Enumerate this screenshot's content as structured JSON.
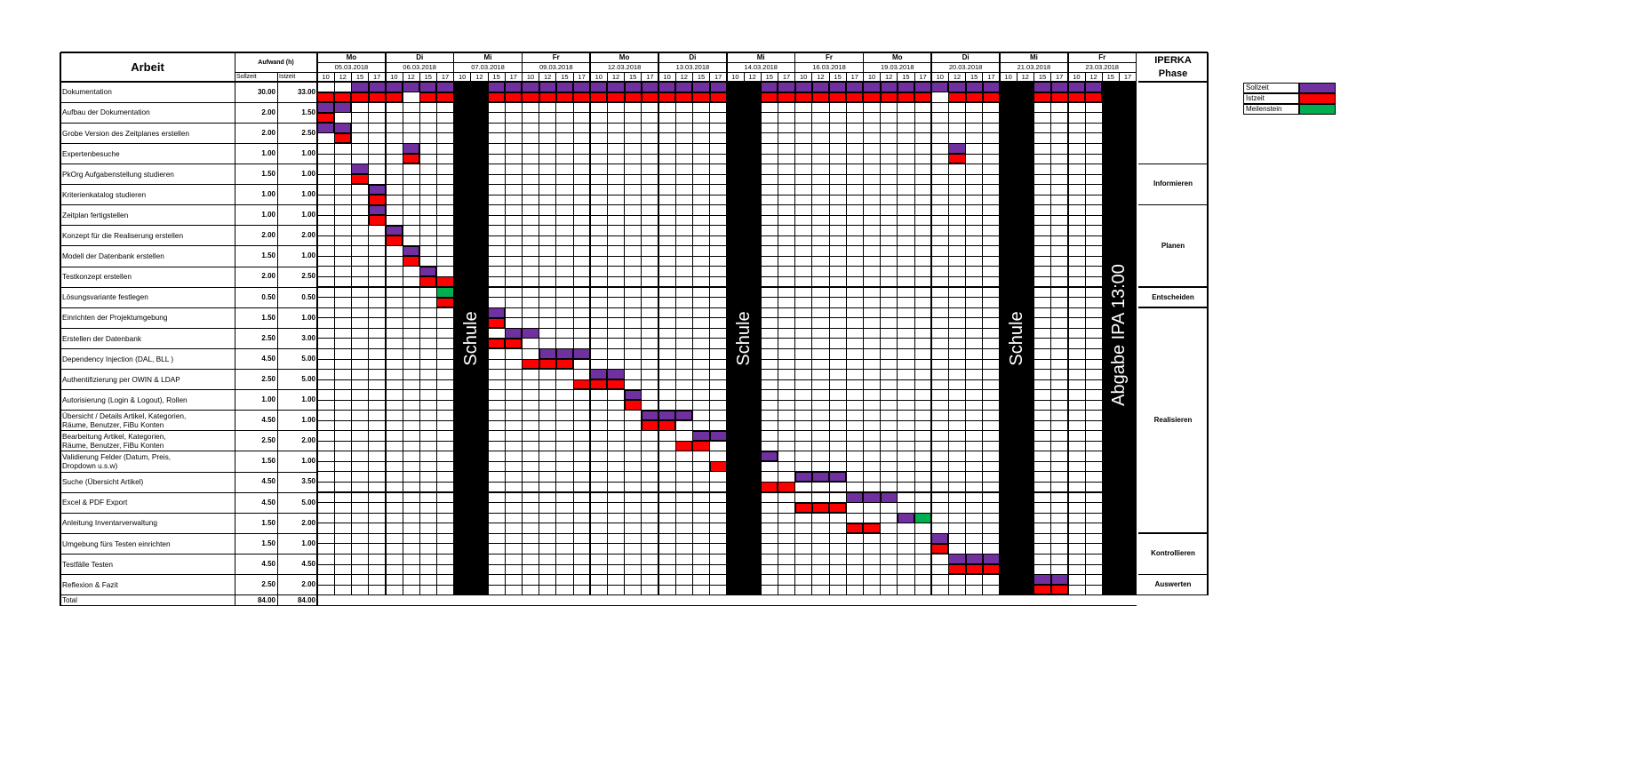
{
  "header": {
    "arbeit": "Arbeit",
    "aufwand": "Aufwand (h)",
    "sollzeit": "Sollzeit",
    "istzeit": "Istzeit",
    "iperka_line1": "IPERKA",
    "iperka_line2": "Phase"
  },
  "days": [
    {
      "day": "Mo",
      "date": "05.03.2018",
      "blocked": false
    },
    {
      "day": "Di",
      "date": "06.03.2018",
      "blocked": false
    },
    {
      "day": "Mi",
      "date": "07.03.2018",
      "blocked": true
    },
    {
      "day": "Fr",
      "date": "09.03.2018",
      "blocked": false
    },
    {
      "day": "Mo",
      "date": "12.03.2018",
      "blocked": false
    },
    {
      "day": "Di",
      "date": "13.03.2018",
      "blocked": false
    },
    {
      "day": "Mi",
      "date": "14.03.2018",
      "blocked": true
    },
    {
      "day": "Fr",
      "date": "16.03.2018",
      "blocked": false
    },
    {
      "day": "Mo",
      "date": "19.03.2018",
      "blocked": false
    },
    {
      "day": "Di",
      "date": "20.03.2018",
      "blocked": false
    },
    {
      "day": "Mi",
      "date": "21.03.2018",
      "blocked": true
    },
    {
      "day": "Fr",
      "date": "23.03.2018",
      "blocked": false
    }
  ],
  "hours": [
    "10",
    "12",
    "15",
    "17"
  ],
  "blocks": [
    {
      "label": "Schule",
      "start_slot": 8,
      "end_slot": 9
    },
    {
      "label": "Schule",
      "start_slot": 24,
      "end_slot": 25
    },
    {
      "label": "Schule",
      "start_slot": 40,
      "end_slot": 41
    },
    {
      "label": "Abgabe IPA 13:00",
      "start_slot": 46,
      "end_slot": 47
    }
  ],
  "tasks": [
    {
      "name": [
        "Dokumentation"
      ],
      "soll": "30.00",
      "ist": "33.00",
      "soll_slots": [
        2,
        3,
        4,
        5,
        6,
        7,
        10,
        11,
        12,
        13,
        14,
        15,
        16,
        17,
        18,
        19,
        20,
        21,
        22,
        23,
        26,
        27,
        28,
        29,
        30,
        31,
        32,
        33,
        34,
        35,
        36,
        37,
        38,
        39,
        42,
        43,
        44,
        45
      ],
      "ist_slots": [
        0,
        1,
        2,
        3,
        4,
        6,
        7,
        10,
        11,
        12,
        13,
        14,
        15,
        16,
        17,
        18,
        19,
        20,
        21,
        22,
        23,
        26,
        27,
        28,
        29,
        30,
        31,
        32,
        33,
        34,
        35,
        37,
        38,
        39,
        42,
        43,
        44,
        45
      ],
      "milestone_slots": []
    },
    {
      "name": [
        "Aufbau der Dokumentation"
      ],
      "soll": "2.00",
      "ist": "1.50",
      "soll_slots": [
        0,
        1
      ],
      "ist_slots": [
        0
      ],
      "milestone_slots": []
    },
    {
      "name": [
        "Grobe Version des Zeitplanes erstellen"
      ],
      "soll": "2.00",
      "ist": "2.50",
      "soll_slots": [
        0,
        1
      ],
      "ist_slots": [
        1
      ],
      "milestone_slots": []
    },
    {
      "name": [
        "Expertenbesuche"
      ],
      "soll": "1.00",
      "ist": "1.00",
      "soll_slots": [
        5,
        37
      ],
      "ist_slots": [
        5,
        37
      ],
      "milestone_slots": []
    },
    {
      "name": [
        "PkOrg Aufgabenstellung studieren"
      ],
      "soll": "1.50",
      "ist": "1.00",
      "soll_slots": [
        2
      ],
      "ist_slots": [
        2
      ],
      "milestone_slots": []
    },
    {
      "name": [
        "Kriterienkatalog studieren"
      ],
      "soll": "1.00",
      "ist": "1.00",
      "soll_slots": [
        3
      ],
      "ist_slots": [
        3
      ],
      "milestone_slots": []
    },
    {
      "name": [
        "Zeitplan fertigstellen"
      ],
      "soll": "1.00",
      "ist": "1.00",
      "soll_slots": [
        3
      ],
      "ist_slots": [
        3
      ],
      "milestone_slots": []
    },
    {
      "name": [
        "Konzept für die Realiserung erstellen"
      ],
      "soll": "2.00",
      "ist": "2.00",
      "soll_slots": [
        4
      ],
      "ist_slots": [
        4
      ],
      "milestone_slots": []
    },
    {
      "name": [
        "Modell der Datenbank erstellen"
      ],
      "soll": "1.50",
      "ist": "1.00",
      "soll_slots": [
        5
      ],
      "ist_slots": [
        5
      ],
      "milestone_slots": []
    },
    {
      "name": [
        "Testkonzept erstellen"
      ],
      "soll": "2.00",
      "ist": "2.50",
      "soll_slots": [
        6
      ],
      "ist_slots": [
        6,
        7
      ],
      "milestone_slots": []
    },
    {
      "name": [
        "Lösungsvariante festlegen"
      ],
      "soll": "0.50",
      "ist": "0.50",
      "soll_slots": [],
      "ist_slots": [
        7
      ],
      "milestone_slots": [
        7
      ]
    },
    {
      "name": [
        "Einrichten der Projektumgebung"
      ],
      "soll": "1.50",
      "ist": "1.00",
      "soll_slots": [
        10
      ],
      "ist_slots": [
        10
      ],
      "milestone_slots": []
    },
    {
      "name": [
        "Erstellen der Datenbank"
      ],
      "soll": "2.50",
      "ist": "3.00",
      "soll_slots": [
        11,
        12
      ],
      "ist_slots": [
        10,
        11
      ],
      "milestone_slots": []
    },
    {
      "name": [
        "Dependency Injection (DAL, BLL )"
      ],
      "soll": "4.50",
      "ist": "5.00",
      "soll_slots": [
        13,
        14,
        15
      ],
      "ist_slots": [
        12,
        13,
        14
      ],
      "milestone_slots": []
    },
    {
      "name": [
        "Authentifizierung per OWIN & LDAP"
      ],
      "soll": "2.50",
      "ist": "5.00",
      "soll_slots": [
        16,
        17
      ],
      "ist_slots": [
        15,
        16,
        17
      ],
      "milestone_slots": []
    },
    {
      "name": [
        "Autorisierung (Login & Logout), Rollen"
      ],
      "soll": "1.00",
      "ist": "1.00",
      "soll_slots": [
        18
      ],
      "ist_slots": [
        18
      ],
      "milestone_slots": []
    },
    {
      "name": [
        "Übersicht / Details Artikel, Kategorien,",
        "Räume, Benutzer, FiBu Konten"
      ],
      "soll": "4.50",
      "ist": "1.00",
      "soll_slots": [
        19,
        20,
        21
      ],
      "ist_slots": [
        19,
        20
      ],
      "milestone_slots": []
    },
    {
      "name": [
        "Bearbeitung Artikel, Kategorien,",
        "Räume, Benutzer, FiBu Konten"
      ],
      "soll": "2.50",
      "ist": "2.00",
      "soll_slots": [
        22,
        23
      ],
      "ist_slots": [
        21,
        22
      ],
      "milestone_slots": []
    },
    {
      "name": [
        "Validierung Felder (Datum, Preis,",
        "Dropdown u.s.w)"
      ],
      "soll": "1.50",
      "ist": "1.00",
      "soll_slots": [
        26
      ],
      "ist_slots": [
        23
      ],
      "milestone_slots": []
    },
    {
      "name": [
        "Suche (Übersicht Artikel)"
      ],
      "soll": "4.50",
      "ist": "3.50",
      "soll_slots": [
        28,
        29,
        30
      ],
      "ist_slots": [
        26,
        27
      ],
      "milestone_slots": []
    },
    {
      "name": [
        "Excel & PDF Export"
      ],
      "soll": "4.50",
      "ist": "5.00",
      "soll_slots": [
        31,
        32,
        33
      ],
      "ist_slots": [
        28,
        29,
        30
      ],
      "milestone_slots": []
    },
    {
      "name": [
        "Anleitung Inventarverwaltung"
      ],
      "soll": "1.50",
      "ist": "2.00",
      "soll_slots": [
        34
      ],
      "ist_slots": [
        31,
        32
      ],
      "milestone_slots": [
        35
      ]
    },
    {
      "name": [
        "Umgebung fürs Testen einrichten"
      ],
      "soll": "1.50",
      "ist": "1.00",
      "soll_slots": [
        36
      ],
      "ist_slots": [
        36
      ],
      "milestone_slots": []
    },
    {
      "name": [
        "Testfälle Testen"
      ],
      "soll": "4.50",
      "ist": "4.50",
      "soll_slots": [
        37,
        38,
        39
      ],
      "ist_slots": [
        37,
        38,
        39
      ],
      "milestone_slots": []
    },
    {
      "name": [
        "Reflexion & Fazit"
      ],
      "soll": "2.50",
      "ist": "2.00",
      "soll_slots": [
        42,
        43
      ],
      "ist_slots": [
        42,
        43
      ],
      "milestone_slots": []
    }
  ],
  "phases": [
    {
      "label": "",
      "start_row": 0,
      "end_row": 3
    },
    {
      "label": "Informieren",
      "start_row": 4,
      "end_row": 5
    },
    {
      "label": "Planen",
      "start_row": 6,
      "end_row": 9
    },
    {
      "label": "Entscheiden",
      "start_row": 10,
      "end_row": 10
    },
    {
      "label": "Realisieren",
      "start_row": 11,
      "end_row": 21
    },
    {
      "label": "Kontrollieren",
      "start_row": 22,
      "end_row": 23
    },
    {
      "label": "Auswerten",
      "start_row": 24,
      "end_row": 24
    }
  ],
  "total": {
    "label": "Total",
    "soll": "84.00",
    "ist": "84.00"
  },
  "legend": [
    {
      "label": "Sollzeit",
      "color": "#7030a0"
    },
    {
      "label": "Istzeit",
      "color": "#ff0000"
    },
    {
      "label": "Meilenstein",
      "color": "#00b050"
    }
  ],
  "colors": {
    "soll": "#7030a0",
    "ist": "#ff0000",
    "milestone": "#00b050",
    "block": "#000000"
  }
}
